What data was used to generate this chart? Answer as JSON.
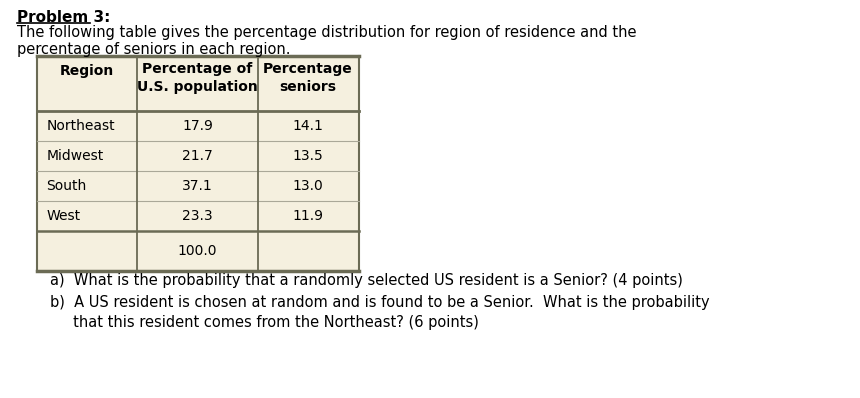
{
  "title": "Problem 3:",
  "intro_line1": "The following table gives the percentage distribution for region of residence and the",
  "intro_line2": "percentage of seniors in each region.",
  "col_header1": "Region",
  "col_header2": "Percentage of\nU.S. population",
  "col_header3": "Percentage\nseniors",
  "regions": [
    "Northeast",
    "Midwest",
    "South",
    "West"
  ],
  "pct_population": [
    17.9,
    21.7,
    37.1,
    23.3
  ],
  "pct_seniors": [
    14.1,
    13.5,
    13.0,
    11.9
  ],
  "total_population": "100.0",
  "question_a": "a)  What is the probability that a randomly selected US resident is a Senior? (4 points)",
  "question_b1": "b)  A US resident is chosen at random and is found to be a Senior.  What is the probability",
  "question_b2": "     that this resident comes from the Northeast? (6 points)",
  "table_bg": "#f5f0df",
  "bg_color": "#ffffff",
  "border_color": "#6b6b55",
  "inner_line_color": "#aaa898"
}
